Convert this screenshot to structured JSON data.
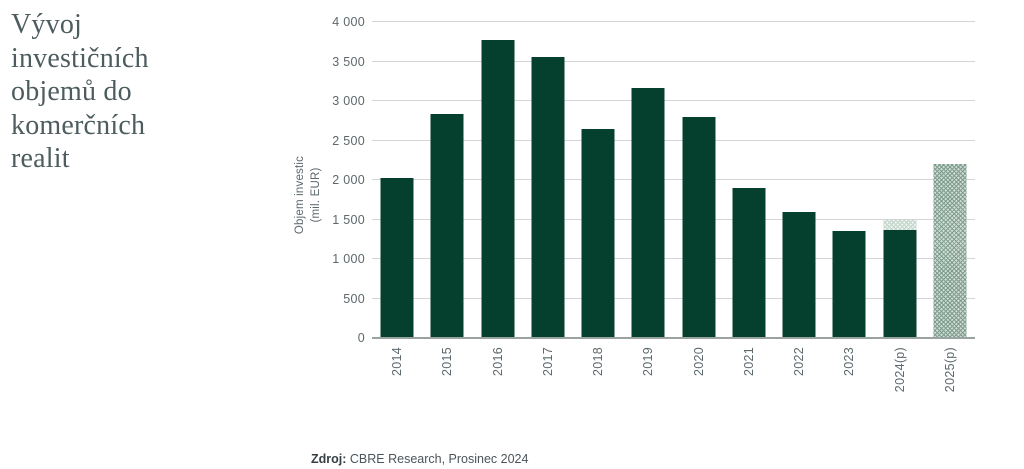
{
  "title": "Vývoj investičních objemů do komerčních realit",
  "title_lines": [
    "Vývoj",
    "investičních",
    "objemů do",
    "komerčních",
    "realit"
  ],
  "footer": {
    "label": "Zdroj:",
    "text": " CBRE Research, Prosinec 2024"
  },
  "chart_data": {
    "type": "bar",
    "title": "Vývoj investičních objemů do komerčních realit",
    "ylabel": "Objem investic (mil. EUR)",
    "ylabel_lines": [
      "Objem investic",
      "(mil. EUR)"
    ],
    "xlabel": "",
    "ylim": [
      0,
      4000
    ],
    "grid": true,
    "legend": "none",
    "yticks": [
      {
        "value": 0,
        "label": "0"
      },
      {
        "value": 500,
        "label": "500"
      },
      {
        "value": 1000,
        "label": "1 000"
      },
      {
        "value": 1500,
        "label": "1 500"
      },
      {
        "value": 2000,
        "label": "2 000"
      },
      {
        "value": 2500,
        "label": "2 500"
      },
      {
        "value": 3000,
        "label": "3 000"
      },
      {
        "value": 3500,
        "label": "3 500"
      },
      {
        "value": 4000,
        "label": "4 000"
      }
    ],
    "categories": [
      "2014",
      "2015",
      "2016",
      "2017",
      "2018",
      "2019",
      "2020",
      "2021",
      "2022",
      "2023",
      "2024(p)",
      "2025(p)"
    ],
    "series": [
      {
        "name": "solid-actual",
        "style": "solid",
        "values": [
          2030,
          2840,
          3770,
          3560,
          2640,
          3160,
          2800,
          1900,
          1600,
          1350,
          1370,
          0
        ]
      },
      {
        "name": "hatched-forecast",
        "style": "hatched",
        "values": [
          0,
          0,
          0,
          0,
          0,
          0,
          0,
          0,
          0,
          0,
          130,
          2200
        ]
      }
    ],
    "totals": [
      2030,
      2840,
      3770,
      3560,
      2640,
      3160,
      2800,
      1900,
      1600,
      1350,
      1500,
      2200
    ],
    "colors": {
      "bar": "#05402f",
      "hatch_fg": "#7d9c8e",
      "hatch_bg": "#cfdcd4",
      "hatch_light_fg": "#c2d5cb",
      "hatch_light_bg": "#eef3f0",
      "grid": "#d2d6d6",
      "axis": "#9ba2a2",
      "tick_text": "#5d686d",
      "title_text": "#4d5c5e",
      "footer_text": "#4a545a",
      "footer_label": "#353f44"
    }
  }
}
